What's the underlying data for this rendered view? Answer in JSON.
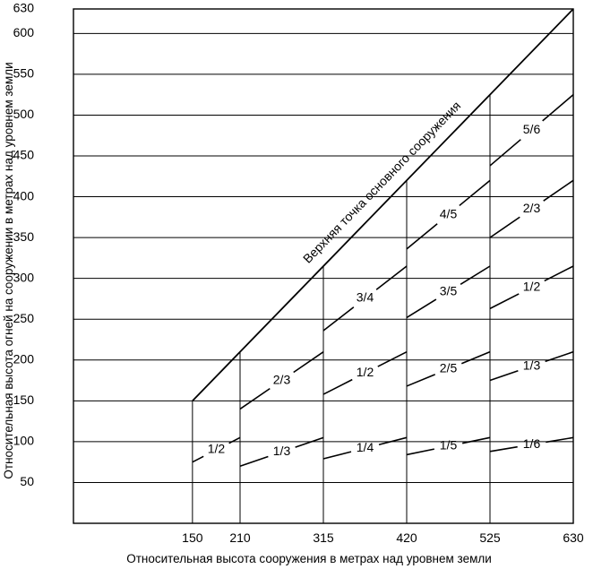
{
  "chart_data": {
    "type": "line",
    "title": "",
    "xlabel": "Относительная высота сооружения в метрах над уровнем земли",
    "ylabel": "Относительная высота огней на сооружении в метрах над уровнем земли",
    "xlim": [
      0,
      630
    ],
    "ylim": [
      0,
      630
    ],
    "x_ticks": [
      150,
      210,
      315,
      420,
      525,
      630
    ],
    "y_ticks": [
      50,
      100,
      150,
      200,
      250,
      300,
      350,
      400,
      450,
      500,
      550,
      600,
      630
    ],
    "grid": "horizontal",
    "top_point_label": "Верхняя точка основного сооружения",
    "top_point_line": {
      "x": [
        150,
        630
      ],
      "y": [
        150,
        630
      ]
    },
    "series": [
      {
        "label": "1/2",
        "x": [
          150,
          210
        ],
        "y": [
          75,
          105
        ]
      },
      {
        "label": "1/3",
        "x": [
          210,
          315
        ],
        "y": [
          70,
          105
        ]
      },
      {
        "label": "2/3",
        "x": [
          210,
          315
        ],
        "y": [
          140,
          210
        ]
      },
      {
        "label": "1/4",
        "x": [
          315,
          420
        ],
        "y": [
          79,
          105
        ]
      },
      {
        "label": "1/2",
        "x": [
          315,
          420
        ],
        "y": [
          158,
          210
        ]
      },
      {
        "label": "3/4",
        "x": [
          315,
          420
        ],
        "y": [
          236,
          315
        ]
      },
      {
        "label": "1/5",
        "x": [
          420,
          525
        ],
        "y": [
          84,
          105
        ]
      },
      {
        "label": "2/5",
        "x": [
          420,
          525
        ],
        "y": [
          168,
          210
        ]
      },
      {
        "label": "3/5",
        "x": [
          420,
          525
        ],
        "y": [
          252,
          315
        ]
      },
      {
        "label": "4/5",
        "x": [
          420,
          525
        ],
        "y": [
          336,
          420
        ]
      },
      {
        "label": "1/6",
        "x": [
          525,
          630
        ],
        "y": [
          88,
          105
        ]
      },
      {
        "label": "1/3",
        "x": [
          525,
          630
        ],
        "y": [
          175,
          210
        ]
      },
      {
        "label": "1/2",
        "x": [
          525,
          630
        ],
        "y": [
          263,
          315
        ]
      },
      {
        "label": "2/3",
        "x": [
          525,
          630
        ],
        "y": [
          350,
          420
        ]
      },
      {
        "label": "5/6",
        "x": [
          525,
          630
        ],
        "y": [
          438,
          525
        ]
      }
    ]
  }
}
